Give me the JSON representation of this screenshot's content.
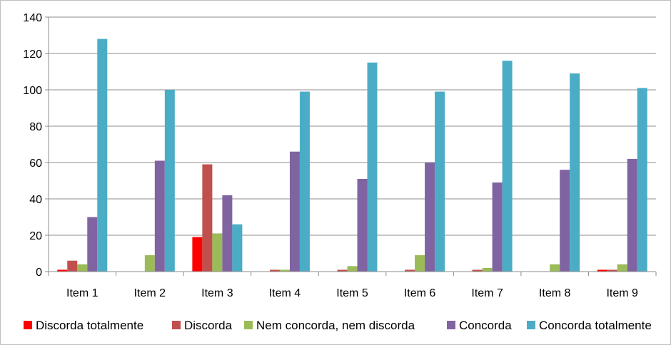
{
  "chart_data": {
    "type": "bar",
    "categories": [
      "Item 1",
      "Item 2",
      "Item 3",
      "Item 4",
      "Item 5",
      "Item 6",
      "Item 7",
      "Item 8",
      "Item 9"
    ],
    "series": [
      {
        "name": "Discorda totalmente",
        "color": "#ff0000",
        "values": [
          1,
          0,
          19,
          0,
          0,
          0,
          0,
          0,
          1
        ]
      },
      {
        "name": "Discorda",
        "color": "#c0504d",
        "values": [
          6,
          0,
          59,
          1,
          1,
          1,
          1,
          0,
          1
        ]
      },
      {
        "name": "Nem concorda, nem discorda",
        "color": "#9bbb59",
        "values": [
          4,
          9,
          21,
          1,
          3,
          9,
          2,
          4,
          4
        ]
      },
      {
        "name": "Concorda",
        "color": "#8064a2",
        "values": [
          30,
          61,
          42,
          66,
          51,
          60,
          49,
          56,
          62
        ]
      },
      {
        "name": "Concorda totalmente",
        "color": "#4bacc6",
        "values": [
          128,
          100,
          26,
          99,
          115,
          99,
          116,
          109,
          101
        ]
      }
    ],
    "yticks": [
      "0",
      "20",
      "40",
      "60",
      "80",
      "100",
      "120",
      "140"
    ],
    "ylim": [
      0,
      140
    ],
    "grid": true,
    "legend_position": "bottom",
    "title": "",
    "xlabel": "",
    "ylabel": ""
  }
}
